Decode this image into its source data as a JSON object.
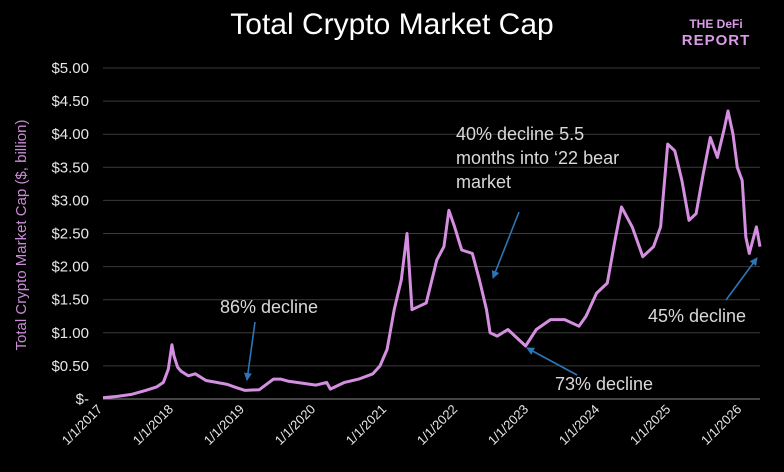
{
  "logo": {
    "line1": "THE DeFi",
    "line2": "REPORT"
  },
  "chart_data": {
    "type": "line",
    "title": "Total Crypto Market Cap",
    "xlabel": "",
    "ylabel": "Total Crypto Market Cap ($, billion)",
    "ylim": [
      0,
      5
    ],
    "xlim": [
      2017.0,
      2026.25
    ],
    "y_ticks": [
      {
        "value": 5.0,
        "label": "$5.00"
      },
      {
        "value": 4.5,
        "label": "$4.50"
      },
      {
        "value": 4.0,
        "label": "$4.00"
      },
      {
        "value": 3.5,
        "label": "$3.50"
      },
      {
        "value": 3.0,
        "label": "$3.00"
      },
      {
        "value": 2.5,
        "label": "$2.50"
      },
      {
        "value": 2.0,
        "label": "$2.00"
      },
      {
        "value": 1.5,
        "label": "$1.50"
      },
      {
        "value": 1.0,
        "label": "$1.00"
      },
      {
        "value": 0.5,
        "label": "$0.50"
      },
      {
        "value": 0.0,
        "label": "$-"
      }
    ],
    "x_ticks": [
      {
        "value": 2017,
        "label": "1/1/2017"
      },
      {
        "value": 2018,
        "label": "1/1/2018"
      },
      {
        "value": 2019,
        "label": "1/1/2019"
      },
      {
        "value": 2020,
        "label": "1/1/2020"
      },
      {
        "value": 2021,
        "label": "1/1/2021"
      },
      {
        "value": 2022,
        "label": "1/1/2022"
      },
      {
        "value": 2023,
        "label": "1/1/2023"
      },
      {
        "value": 2024,
        "label": "1/1/2024"
      },
      {
        "value": 2025,
        "label": "1/1/2025"
      },
      {
        "value": 2026,
        "label": "1/1/2026"
      }
    ],
    "series": [
      {
        "name": "Total Crypto Market Cap",
        "color": "#d48fe0",
        "x": [
          2017.0,
          2017.2,
          2017.4,
          2017.6,
          2017.75,
          2017.85,
          2017.92,
          2017.97,
          2018.0,
          2018.05,
          2018.1,
          2018.2,
          2018.3,
          2018.45,
          2018.6,
          2018.75,
          2018.88,
          2019.0,
          2019.2,
          2019.4,
          2019.5,
          2019.6,
          2019.8,
          2020.0,
          2020.15,
          2020.2,
          2020.4,
          2020.6,
          2020.8,
          2020.9,
          2021.0,
          2021.1,
          2021.2,
          2021.28,
          2021.35,
          2021.45,
          2021.55,
          2021.7,
          2021.8,
          2021.87,
          2021.95,
          2022.05,
          2022.2,
          2022.3,
          2022.4,
          2022.45,
          2022.55,
          2022.7,
          2022.85,
          2022.95,
          2023.1,
          2023.3,
          2023.5,
          2023.7,
          2023.8,
          2023.95,
          2024.1,
          2024.2,
          2024.3,
          2024.45,
          2024.6,
          2024.75,
          2024.85,
          2024.95,
          2025.05,
          2025.15,
          2025.25,
          2025.35,
          2025.45,
          2025.55,
          2025.65,
          2025.75,
          2025.8,
          2025.87,
          2025.93,
          2026.0,
          2026.05,
          2026.1,
          2026.2,
          2026.25
        ],
        "values": [
          0.02,
          0.04,
          0.07,
          0.13,
          0.18,
          0.25,
          0.45,
          0.82,
          0.65,
          0.48,
          0.42,
          0.35,
          0.38,
          0.28,
          0.25,
          0.22,
          0.17,
          0.13,
          0.14,
          0.3,
          0.3,
          0.27,
          0.24,
          0.21,
          0.25,
          0.15,
          0.25,
          0.3,
          0.38,
          0.5,
          0.75,
          1.35,
          1.8,
          2.5,
          1.35,
          1.4,
          1.45,
          2.1,
          2.3,
          2.85,
          2.6,
          2.25,
          2.2,
          1.8,
          1.35,
          1.0,
          0.95,
          1.05,
          0.9,
          0.8,
          1.05,
          1.2,
          1.2,
          1.1,
          1.25,
          1.6,
          1.75,
          2.35,
          2.9,
          2.6,
          2.15,
          2.3,
          2.6,
          3.85,
          3.75,
          3.3,
          2.7,
          2.8,
          3.4,
          3.95,
          3.65,
          4.1,
          4.35,
          4.0,
          3.5,
          3.3,
          2.45,
          2.2,
          2.6,
          2.3
        ]
      }
    ],
    "annotations": [
      {
        "lines": [
          "86% decline"
        ],
        "x": 2019.0,
        "y": 0.13
      },
      {
        "lines": [
          "40% decline 5.5",
          "months into ‘22 bear",
          "market"
        ],
        "x": 2022.45,
        "y": 1.8
      },
      {
        "lines": [
          "73% decline"
        ],
        "x": 2022.95,
        "y": 0.8
      },
      {
        "lines": [
          "45% decline"
        ],
        "x": 2026.25,
        "y": 2.2
      }
    ],
    "grid": true,
    "legend": "none"
  }
}
